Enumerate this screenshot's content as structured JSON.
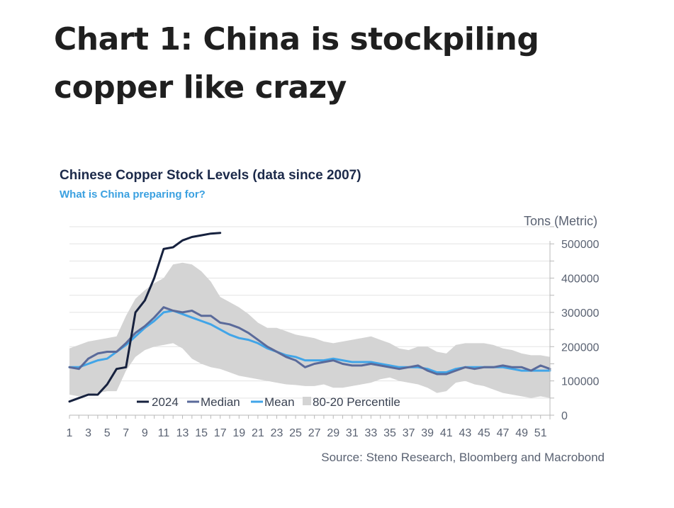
{
  "headline": "Chart 1: China is stockpiling copper like crazy",
  "chart_data": {
    "type": "line",
    "title": "Chinese Copper Stock Levels (data since 2007)",
    "subtitle": "What is China preparing for?",
    "ylabel": "Tons (Metric)",
    "xlabel": "",
    "source": "Source: Steno Research, Bloomberg and Macrobond",
    "x": [
      1,
      2,
      3,
      4,
      5,
      6,
      7,
      8,
      9,
      10,
      11,
      12,
      13,
      14,
      15,
      16,
      17,
      18,
      19,
      20,
      21,
      22,
      23,
      24,
      25,
      26,
      27,
      28,
      29,
      30,
      31,
      32,
      33,
      34,
      35,
      36,
      37,
      38,
      39,
      40,
      41,
      42,
      43,
      44,
      45,
      46,
      47,
      48,
      49,
      50,
      51,
      52
    ],
    "xlim": [
      1,
      52
    ],
    "ylim": [
      0,
      550000
    ],
    "x_ticks": [
      "1",
      "3",
      "5",
      "7",
      "9",
      "11",
      "13",
      "15",
      "17",
      "19",
      "21",
      "23",
      "25",
      "27",
      "29",
      "31",
      "33",
      "35",
      "37",
      "39",
      "41",
      "43",
      "45",
      "47",
      "49",
      "51"
    ],
    "y_ticks": [
      {
        "value": 0,
        "label": "0"
      },
      {
        "value": 100000,
        "label": "100000"
      },
      {
        "value": 200000,
        "label": "200000"
      },
      {
        "value": 300000,
        "label": "300000"
      },
      {
        "value": 400000,
        "label": "400000"
      },
      {
        "value": 500000,
        "label": "500000"
      }
    ],
    "band": {
      "name": "80-20 Percentile",
      "color": "#d4d4d4",
      "upper": [
        195000,
        205000,
        215000,
        220000,
        225000,
        230000,
        290000,
        340000,
        365000,
        385000,
        400000,
        440000,
        445000,
        440000,
        420000,
        390000,
        345000,
        330000,
        315000,
        295000,
        270000,
        255000,
        255000,
        245000,
        235000,
        230000,
        225000,
        215000,
        210000,
        215000,
        220000,
        225000,
        230000,
        220000,
        210000,
        195000,
        190000,
        200000,
        200000,
        185000,
        180000,
        205000,
        210000,
        210000,
        210000,
        205000,
        195000,
        190000,
        180000,
        175000,
        175000,
        170000
      ],
      "lower": [
        60000,
        55000,
        60000,
        65000,
        70000,
        70000,
        130000,
        170000,
        190000,
        200000,
        205000,
        210000,
        195000,
        165000,
        150000,
        140000,
        135000,
        125000,
        115000,
        110000,
        105000,
        100000,
        95000,
        90000,
        88000,
        85000,
        85000,
        90000,
        80000,
        80000,
        85000,
        90000,
        95000,
        105000,
        110000,
        100000,
        95000,
        90000,
        80000,
        65000,
        70000,
        95000,
        100000,
        90000,
        85000,
        75000,
        65000,
        60000,
        55000,
        50000,
        55000,
        50000
      ]
    },
    "series": [
      {
        "name": "2024",
        "color": "#16213e",
        "width": 3,
        "x": [
          1,
          2,
          3,
          4,
          5,
          6,
          7,
          8,
          9,
          10,
          11,
          12,
          13,
          14,
          15,
          16,
          17
        ],
        "values": [
          40000,
          50000,
          60000,
          60000,
          90000,
          135000,
          140000,
          300000,
          335000,
          400000,
          485000,
          490000,
          510000,
          520000,
          525000,
          530000,
          532000
        ]
      },
      {
        "name": "Median",
        "color": "#5a6a9a",
        "width": 3,
        "values": [
          140000,
          135000,
          165000,
          180000,
          185000,
          185000,
          210000,
          240000,
          260000,
          285000,
          315000,
          305000,
          300000,
          305000,
          290000,
          290000,
          270000,
          265000,
          255000,
          240000,
          220000,
          200000,
          185000,
          170000,
          160000,
          140000,
          150000,
          155000,
          160000,
          150000,
          145000,
          145000,
          150000,
          145000,
          140000,
          135000,
          140000,
          145000,
          130000,
          120000,
          120000,
          130000,
          140000,
          135000,
          140000,
          140000,
          145000,
          140000,
          140000,
          130000,
          145000,
          135000
        ]
      },
      {
        "name": "Mean",
        "color": "#41a5e8",
        "width": 3,
        "values": [
          140000,
          140000,
          150000,
          160000,
          165000,
          185000,
          205000,
          230000,
          255000,
          275000,
          300000,
          305000,
          295000,
          285000,
          275000,
          265000,
          250000,
          235000,
          225000,
          220000,
          210000,
          195000,
          185000,
          175000,
          170000,
          160000,
          160000,
          160000,
          165000,
          160000,
          155000,
          155000,
          155000,
          150000,
          145000,
          140000,
          140000,
          140000,
          135000,
          125000,
          125000,
          135000,
          140000,
          140000,
          140000,
          140000,
          140000,
          135000,
          130000,
          130000,
          130000,
          130000
        ]
      }
    ]
  }
}
